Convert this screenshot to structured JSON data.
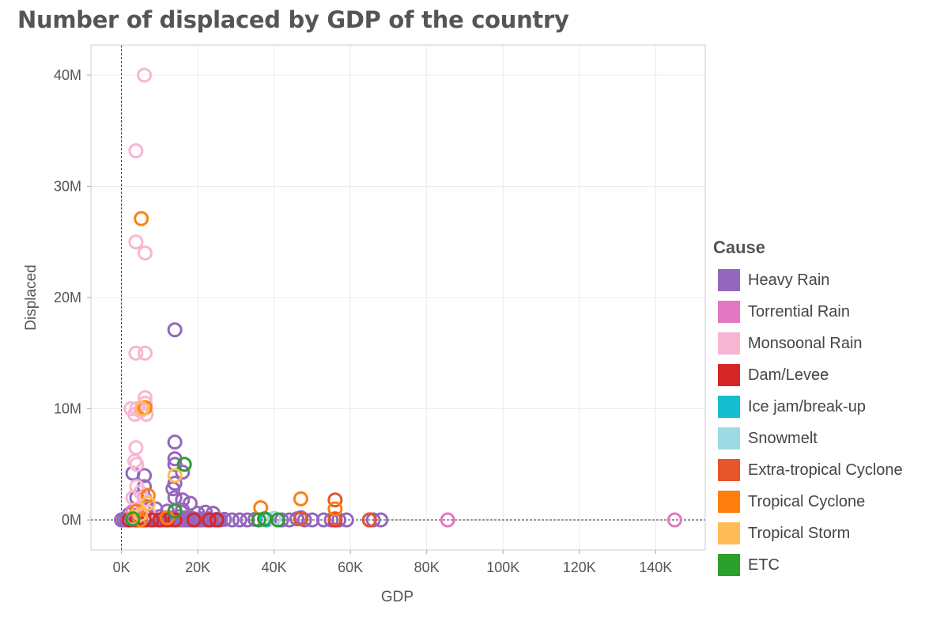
{
  "chart_data": {
    "type": "scatter",
    "title": "Number of displaced by GDP of the country",
    "xlabel": "GDP",
    "ylabel": "Displaced",
    "xlim": [
      -8000,
      153000
    ],
    "ylim": [
      -2700000,
      42700000
    ],
    "x_ticks": [
      0,
      20000,
      40000,
      60000,
      80000,
      100000,
      120000,
      140000
    ],
    "x_tick_labels": [
      "0K",
      "20K",
      "40K",
      "60K",
      "80K",
      "100K",
      "120K",
      "140K"
    ],
    "y_ticks": [
      0,
      10000000,
      20000000,
      30000000,
      40000000
    ],
    "y_tick_labels": [
      "0M",
      "10M",
      "20M",
      "30M",
      "40M"
    ],
    "grid": true,
    "marker": "hollow-circle",
    "legend": {
      "title": "Cause",
      "position": "right"
    },
    "series": [
      {
        "name": "Heavy Rain",
        "color": "#9467bd",
        "points": [
          [
            14000,
            17100000
          ],
          [
            14000,
            7000000
          ],
          [
            14000,
            5500000
          ],
          [
            14000,
            5000000
          ],
          [
            16000,
            4300000
          ],
          [
            3000,
            4200000
          ],
          [
            6000,
            4000000
          ],
          [
            14000,
            3300000
          ],
          [
            6000,
            3000000
          ],
          [
            13500,
            2800000
          ],
          [
            4000,
            2000000
          ],
          [
            6000,
            2000000
          ],
          [
            14000,
            2000000
          ],
          [
            16000,
            1800000
          ],
          [
            18000,
            1500000
          ],
          [
            6500,
            1200000
          ],
          [
            9000,
            1000000
          ],
          [
            12000,
            800000
          ],
          [
            16000,
            900000
          ],
          [
            20000,
            600000
          ],
          [
            22000,
            700000
          ],
          [
            24000,
            600000
          ],
          [
            2000,
            500000
          ],
          [
            3500,
            400000
          ],
          [
            5000,
            300000
          ],
          [
            8000,
            200000
          ],
          [
            10000,
            300000
          ],
          [
            13000,
            200000
          ],
          [
            15000,
            300000
          ],
          [
            17000,
            200000
          ],
          [
            19000,
            100000
          ],
          [
            21000,
            100000
          ],
          [
            23000,
            100000
          ],
          [
            25000,
            50000
          ],
          [
            27000,
            50000
          ],
          [
            29000,
            0
          ],
          [
            31000,
            0
          ],
          [
            33000,
            0
          ],
          [
            35000,
            50000
          ],
          [
            38000,
            0
          ],
          [
            42000,
            0
          ],
          [
            44000,
            0
          ],
          [
            46000,
            100000
          ],
          [
            47000,
            200000
          ],
          [
            48000,
            0
          ],
          [
            50000,
            0
          ],
          [
            53000,
            0
          ],
          [
            55000,
            0
          ],
          [
            57000,
            0
          ],
          [
            59000,
            0
          ],
          [
            66000,
            0
          ],
          [
            68000,
            0
          ]
        ]
      },
      {
        "name": "Torrential Rain",
        "color": "#e377c2",
        "points": [
          [
            145000,
            0
          ],
          [
            85500,
            0
          ],
          [
            3000,
            800000
          ],
          [
            5000,
            300000
          ]
        ]
      },
      {
        "name": "Monsoonal Rain",
        "color": "#f7b6d2",
        "points": [
          [
            6000,
            40000000
          ],
          [
            3800,
            33200000
          ],
          [
            3800,
            25000000
          ],
          [
            6200,
            24000000
          ],
          [
            3800,
            15000000
          ],
          [
            6200,
            15000000
          ],
          [
            6200,
            11000000
          ],
          [
            6200,
            10500000
          ],
          [
            2500,
            10000000
          ],
          [
            4000,
            10000000
          ],
          [
            5000,
            9800000
          ],
          [
            6500,
            9500000
          ],
          [
            3500,
            9500000
          ],
          [
            3800,
            6500000
          ],
          [
            3500,
            5300000
          ],
          [
            4000,
            5000000
          ],
          [
            4000,
            3000000
          ],
          [
            5000,
            2500000
          ],
          [
            3000,
            2000000
          ],
          [
            6000,
            1800000
          ],
          [
            4500,
            1000000
          ],
          [
            7000,
            700000
          ],
          [
            5500,
            400000
          ]
        ]
      },
      {
        "name": "Dam/Levee",
        "color": "#d62728",
        "points": [
          [
            2000,
            0
          ],
          [
            4000,
            0
          ],
          [
            6000,
            0
          ],
          [
            8000,
            0
          ],
          [
            10000,
            0
          ],
          [
            12000,
            0
          ],
          [
            14000,
            0
          ],
          [
            19000,
            0
          ],
          [
            23000,
            0
          ],
          [
            25000,
            0
          ],
          [
            56000,
            0
          ],
          [
            65000,
            0
          ]
        ]
      },
      {
        "name": "Ice jam/break-up",
        "color": "#17becf",
        "points": [
          [
            38000,
            50000
          ]
        ]
      },
      {
        "name": "Snowmelt",
        "color": "#9edae5",
        "points": [
          [
            40000,
            150000
          ]
        ]
      },
      {
        "name": "Extra-tropical Cyclone",
        "color": "#e6552b",
        "points": [
          [
            56000,
            1800000
          ],
          [
            56000,
            100000
          ],
          [
            47000,
            100000
          ],
          [
            65000,
            0
          ]
        ]
      },
      {
        "name": "Tropical Cyclone",
        "color": "#ff7f0e",
        "points": [
          [
            5200,
            27100000
          ],
          [
            6200,
            10100000
          ],
          [
            47000,
            1900000
          ],
          [
            56000,
            1000000
          ],
          [
            36500,
            1100000
          ],
          [
            7000,
            2200000
          ],
          [
            4000,
            800000
          ],
          [
            5000,
            0
          ],
          [
            12000,
            200000
          ]
        ]
      },
      {
        "name": "Tropical Storm",
        "color": "#ffbb55",
        "points": [
          [
            5500,
            10000000
          ],
          [
            14000,
            4000000
          ],
          [
            7000,
            1500000
          ],
          [
            5000,
            500000
          ],
          [
            3000,
            200000
          ]
        ]
      },
      {
        "name": "ETC",
        "color": "#2ca02c",
        "points": [
          [
            16500,
            5000000
          ],
          [
            14000,
            800000
          ],
          [
            3000,
            100000
          ],
          [
            36000,
            0
          ],
          [
            41000,
            0
          ],
          [
            37500,
            100000
          ]
        ]
      }
    ]
  }
}
